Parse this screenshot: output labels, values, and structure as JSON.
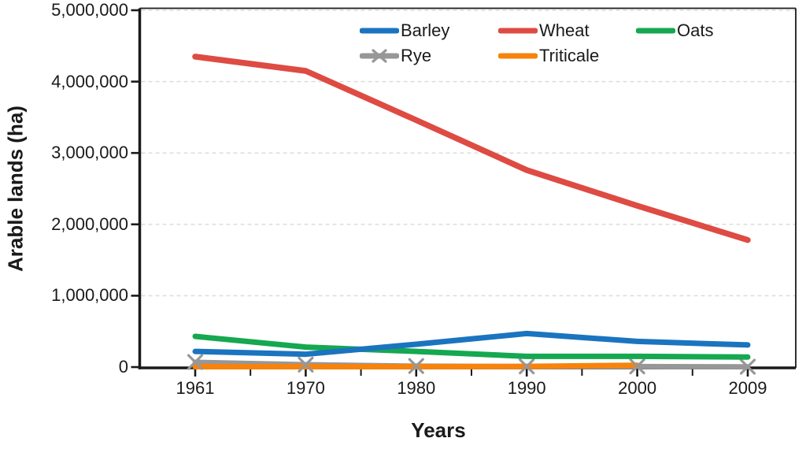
{
  "chart_data": {
    "type": "line",
    "title": "",
    "xlabel": "Years",
    "ylabel": "Arable lands (ha)",
    "categories": [
      "1961",
      "1970",
      "1980",
      "1990",
      "2000",
      "2009"
    ],
    "ylim": [
      0,
      5000000
    ],
    "ytick_step": 1000000,
    "ytick_labels": [
      "0",
      "1,000,000",
      "2,000,000",
      "3,000,000",
      "4,000,000",
      "5,000,000"
    ],
    "grid": "horizontal-dashed",
    "legend_position": "top-inside-two-rows",
    "legend_rows": [
      [
        "Barley",
        "Wheat",
        "Oats"
      ],
      [
        "Rye",
        "Triticale"
      ]
    ],
    "series": [
      {
        "name": "Barley",
        "color": "#1B74BF",
        "marker": "none",
        "values": [
          220000,
          180000,
          320000,
          470000,
          360000,
          310000
        ]
      },
      {
        "name": "Wheat",
        "color": "#DE4B43",
        "marker": "none",
        "values": [
          4350000,
          4150000,
          3460000,
          2760000,
          2260000,
          1780000
        ]
      },
      {
        "name": "Oats",
        "color": "#15A850",
        "marker": "none",
        "values": [
          430000,
          280000,
          220000,
          150000,
          150000,
          140000
        ]
      },
      {
        "name": "Rye",
        "color": "#979797",
        "marker": "x",
        "values": [
          70000,
          35000,
          15000,
          10000,
          10000,
          5000
        ]
      },
      {
        "name": "Triticale",
        "color": "#F8830C",
        "marker": "none",
        "values": [
          5000,
          5000,
          5000,
          10000,
          25000,
          null
        ]
      }
    ],
    "axis_color": "#1a1a1a",
    "gridline_color": "#d9d9d9"
  }
}
